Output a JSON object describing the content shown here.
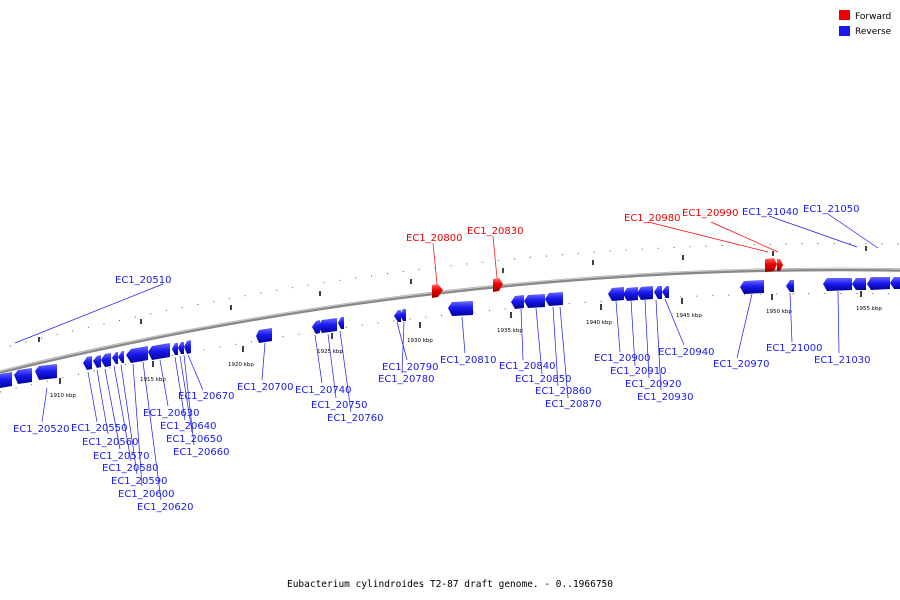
{
  "caption": "Eubacterium cylindroides T2-87 draft genome. - 0..1966750",
  "colors": {
    "forward": "#ee0000",
    "reverse": "#1a1aee",
    "backbone": "#777777"
  },
  "legend": [
    {
      "label": "Forward",
      "strand": "forward"
    },
    {
      "label": "Reverse",
      "strand": "reverse"
    }
  ],
  "ticks": [
    "1910 kbp",
    "1915 kbp",
    "1920 kbp",
    "1925 kbp",
    "1930 kbp",
    "1935 kbp",
    "1940 kbp",
    "1945 kbp",
    "1950 kbp",
    "1955 kbp"
  ],
  "labels": [
    {
      "text": "EC1_20510",
      "strand": "reverse"
    },
    {
      "text": "EC1_20520",
      "strand": "reverse"
    },
    {
      "text": "EC1_20550",
      "strand": "reverse"
    },
    {
      "text": "EC1_20560",
      "strand": "reverse"
    },
    {
      "text": "EC1_20570",
      "strand": "reverse"
    },
    {
      "text": "EC1_20580",
      "strand": "reverse"
    },
    {
      "text": "EC1_20590",
      "strand": "reverse"
    },
    {
      "text": "EC1_20600",
      "strand": "reverse"
    },
    {
      "text": "EC1_20620",
      "strand": "reverse"
    },
    {
      "text": "EC1_20630",
      "strand": "reverse"
    },
    {
      "text": "EC1_20640",
      "strand": "reverse"
    },
    {
      "text": "EC1_20650",
      "strand": "reverse"
    },
    {
      "text": "EC1_20660",
      "strand": "reverse"
    },
    {
      "text": "EC1_20670",
      "strand": "reverse"
    },
    {
      "text": "EC1_20700",
      "strand": "reverse"
    },
    {
      "text": "EC1_20740",
      "strand": "reverse"
    },
    {
      "text": "EC1_20750",
      "strand": "reverse"
    },
    {
      "text": "EC1_20760",
      "strand": "reverse"
    },
    {
      "text": "EC1_20790",
      "strand": "reverse"
    },
    {
      "text": "EC1_20780",
      "strand": "reverse"
    },
    {
      "text": "EC1_20800",
      "strand": "forward"
    },
    {
      "text": "EC1_20810",
      "strand": "reverse"
    },
    {
      "text": "EC1_20830",
      "strand": "forward"
    },
    {
      "text": "EC1_20840",
      "strand": "reverse"
    },
    {
      "text": "EC1_20850",
      "strand": "reverse"
    },
    {
      "text": "EC1_20860",
      "strand": "reverse"
    },
    {
      "text": "EC1_20870",
      "strand": "reverse"
    },
    {
      "text": "EC1_20900",
      "strand": "reverse"
    },
    {
      "text": "EC1_20910",
      "strand": "reverse"
    },
    {
      "text": "EC1_20920",
      "strand": "reverse"
    },
    {
      "text": "EC1_20930",
      "strand": "reverse"
    },
    {
      "text": "EC1_20940",
      "strand": "reverse"
    },
    {
      "text": "EC1_20970",
      "strand": "reverse"
    },
    {
      "text": "EC1_20980",
      "strand": "forward"
    },
    {
      "text": "EC1_20990",
      "strand": "forward"
    },
    {
      "text": "EC1_21000",
      "strand": "reverse"
    },
    {
      "text": "EC1_21030",
      "strand": "reverse"
    },
    {
      "text": "EC1_21040",
      "strand": "reverse"
    },
    {
      "text": "EC1_21050",
      "strand": "reverse"
    }
  ]
}
